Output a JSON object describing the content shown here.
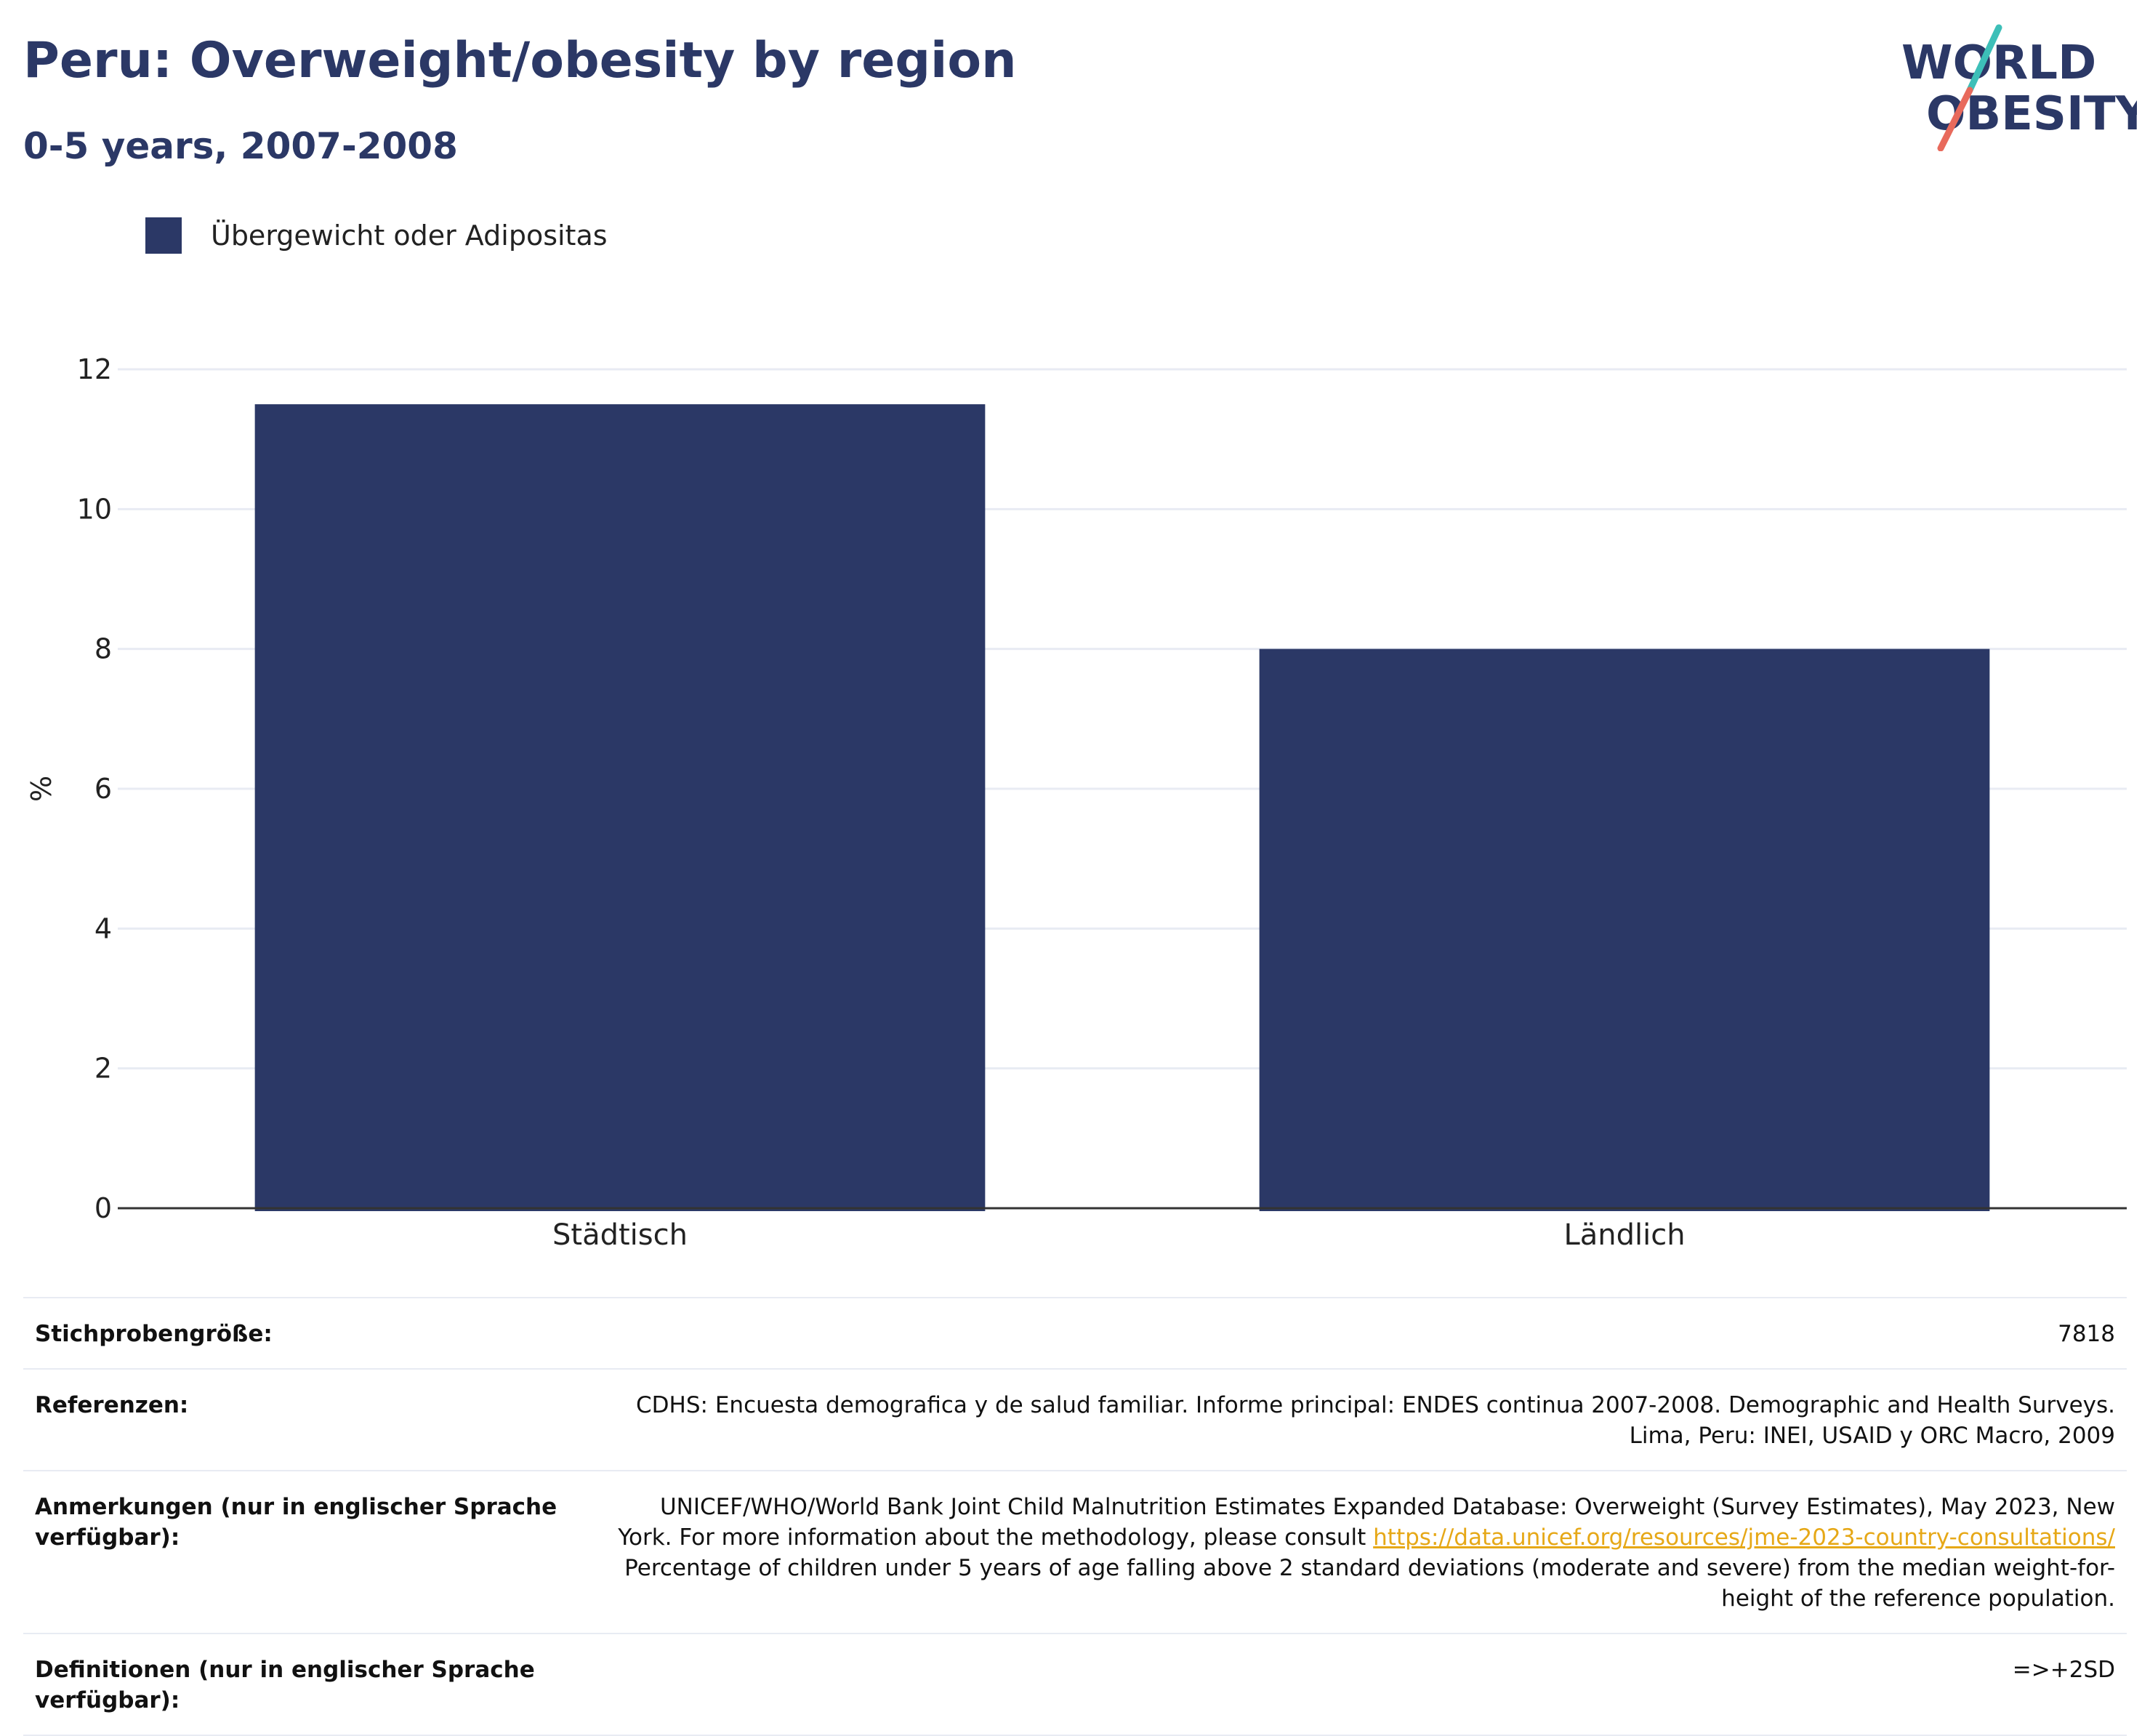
{
  "header": {
    "title": "Peru: Overweight/obesity by region",
    "subtitle": "0-5 years, 2007-2008"
  },
  "logo": {
    "line1": "WORLD",
    "line2": "OBESITY",
    "colors": {
      "text": "#2b3866",
      "slash_top": "#3dbfb8",
      "slash_bottom": "#e86a5c"
    }
  },
  "chart_data": {
    "type": "bar",
    "categories": [
      "Städtisch",
      "Ländlich"
    ],
    "series": [
      {
        "name": "Übergewicht oder Adipositas",
        "values": [
          11.5,
          8.0
        ],
        "color": "#2b3866"
      }
    ],
    "ylabel": "%",
    "ylim": [
      0,
      12
    ],
    "yticks": [
      0,
      2,
      4,
      6,
      8,
      10,
      12
    ],
    "grid": true,
    "legend": "top-left"
  },
  "info": {
    "sample_size": {
      "label": "Stichprobengröße:",
      "value": "7818"
    },
    "references": {
      "label": "Referenzen:",
      "line1": "CDHS: Encuesta demografica y de salud familiar. Informe principal: ENDES continua 2007-2008. Demographic and Health Surveys.",
      "line2": "Lima, Peru: INEI, USAID y ORC Macro, 2009"
    },
    "notes": {
      "label": "Anmerkungen (nur in englischer Sprache verfügbar):",
      "text_before": "UNICEF/WHO/World Bank Joint Child Malnutrition Estimates Expanded Database: Overweight (Survey Estimates), May 2023, New York. For more information about the methodology, please consult ",
      "link": "https://data.unicef.org/resources/jme-2023-country-consultations/",
      "text_after": " Percentage of children under 5 years of age falling above 2 standard deviations (moderate and severe) from the median weight-for-height of the reference population."
    },
    "definitions": {
      "label": "Definitionen (nur in englischer Sprache verfügbar):",
      "value": "=>+2SD"
    }
  }
}
